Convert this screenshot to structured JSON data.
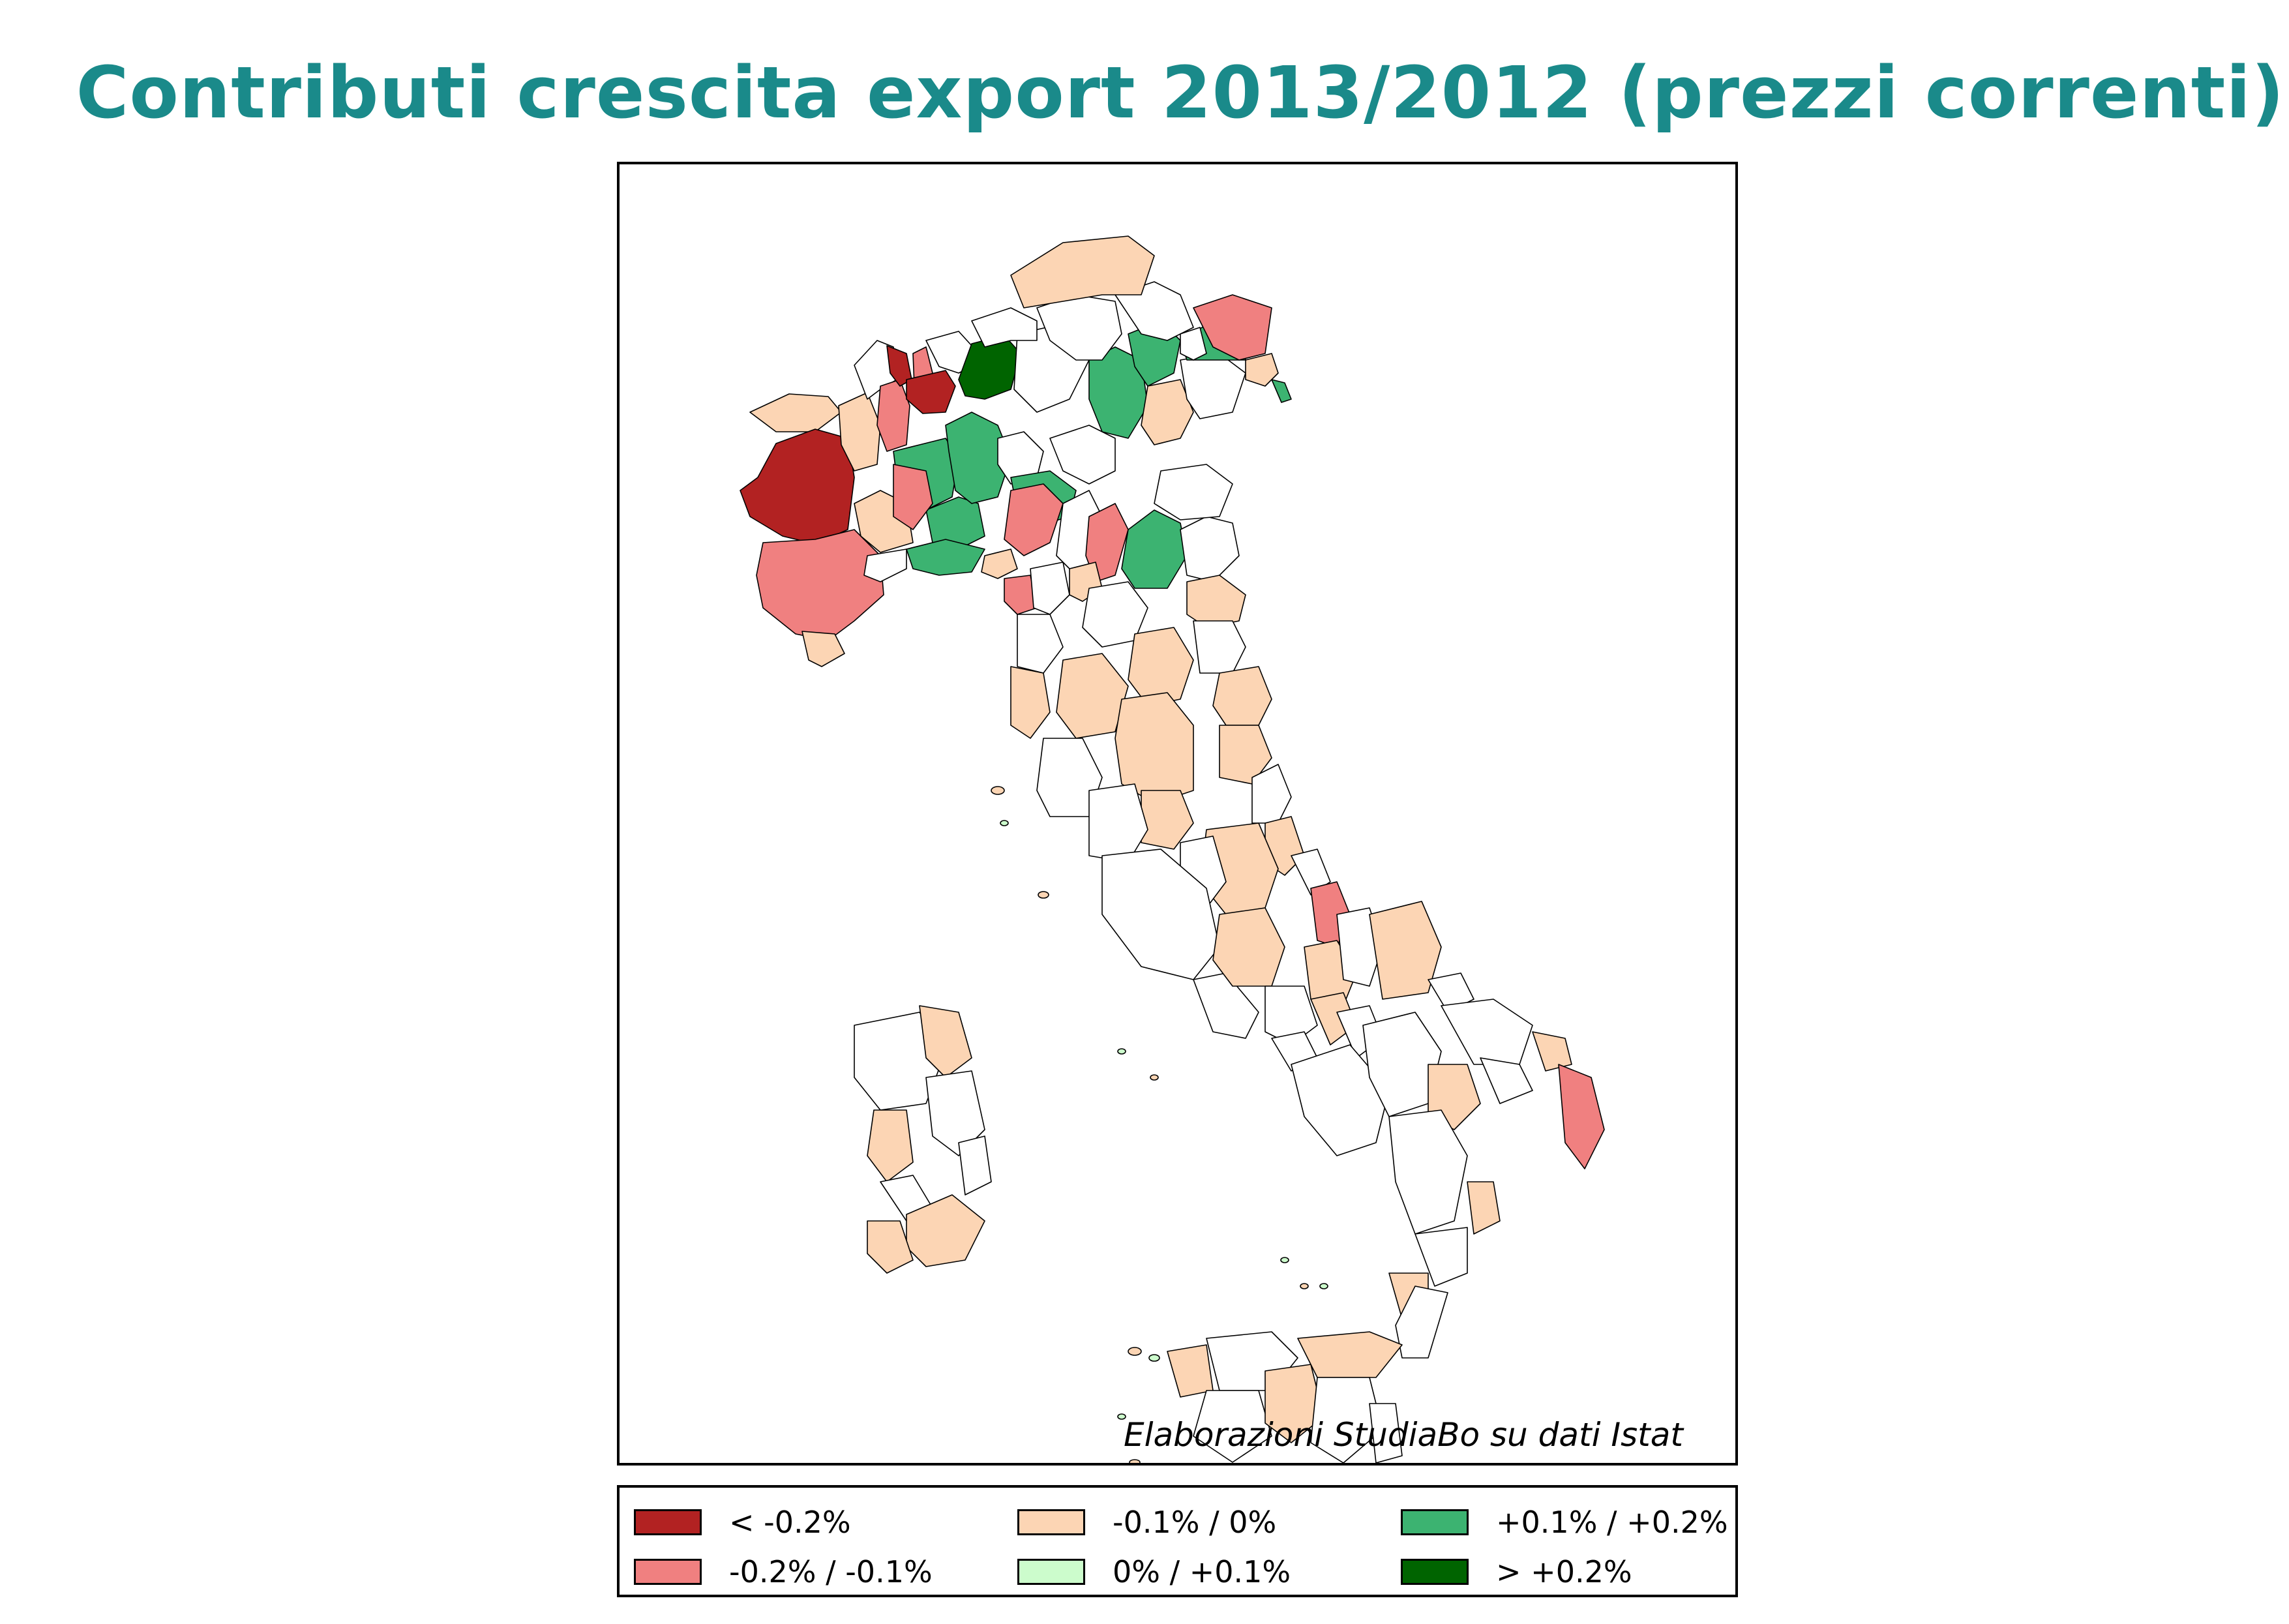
{
  "title": "Contributi crescita export 2013/2012 (prezzi correnti)",
  "credit": "Elaborazioni StudiaBo su dati Istat",
  "colors": {
    "lt_neg02": "#b22222",
    "neg02_neg01": "#f08080",
    "neg01_0": "#fcd5b4",
    "0_pos01": "#ccfccc",
    "pos01_pos02": "#3cb371",
    "gt_pos02": "#006400",
    "border": "#000000",
    "title": "#1a8a8a"
  },
  "legend": [
    {
      "key": "lt_neg02",
      "label": "< -0.2%"
    },
    {
      "key": "neg01_0",
      "label": "-0.1% / 0%"
    },
    {
      "key": "pos01_pos02",
      "label": "+0.1% / +0.2%"
    },
    {
      "key": "neg02_neg01",
      "label": "-0.2% / -0.1%"
    },
    {
      "key": "0_pos01",
      "label": "0% / +0.1%"
    },
    {
      "key": "gt_pos02",
      "label": "> +0.2%"
    }
  ]
}
